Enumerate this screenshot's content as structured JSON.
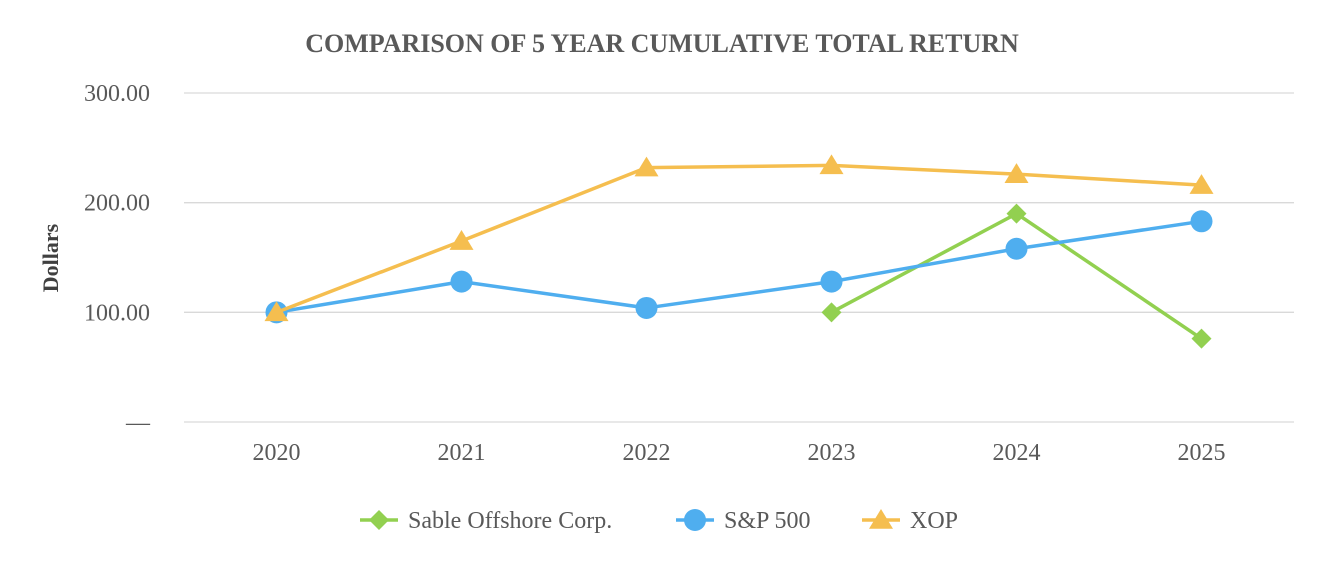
{
  "chart_data": {
    "type": "line",
    "title": "COMPARISON OF 5 YEAR CUMULATIVE TOTAL RETURN",
    "ylabel": "Dollars",
    "xlabel": "",
    "categories": [
      "2020",
      "2021",
      "2022",
      "2023",
      "2024",
      "2025"
    ],
    "y_ticks": [
      "—",
      "100.00",
      "200.00",
      "300.00"
    ],
    "ylim": [
      0,
      300
    ],
    "grid": true,
    "legend_position": "bottom",
    "series": [
      {
        "name": "Sable Offshore Corp.",
        "marker": "diamond",
        "color": "#92D050",
        "values": [
          null,
          null,
          null,
          100,
          190,
          76
        ]
      },
      {
        "name": "S&P 500",
        "marker": "circle",
        "color": "#4FAEEF",
        "values": [
          100,
          128,
          104,
          128,
          158,
          183
        ]
      },
      {
        "name": "XOP",
        "marker": "triangle",
        "color": "#F5BE4F",
        "values": [
          100,
          165,
          232,
          234,
          226,
          216
        ]
      }
    ]
  }
}
